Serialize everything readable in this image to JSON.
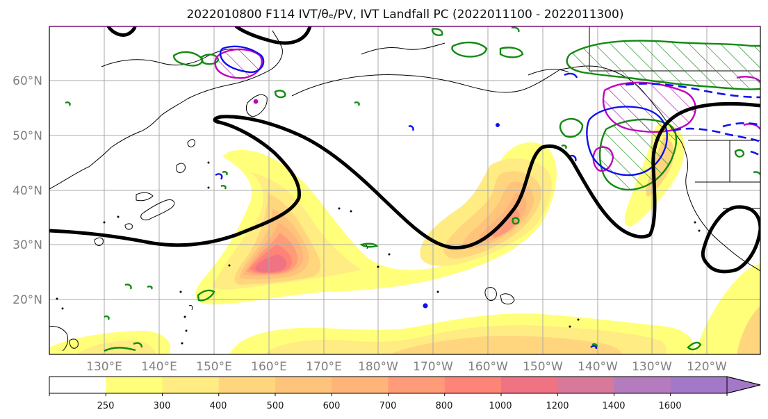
{
  "title": "2022010800 F114 IVT/θₑ/PV, IVT Landfall PC (2022011100 - 2022011300)",
  "map": {
    "lat_labels": [
      "60°N",
      "50°N",
      "40°N",
      "30°N",
      "20°N"
    ],
    "lon_labels": [
      "130°E",
      "140°E",
      "150°E",
      "160°E",
      "170°E",
      "180°W",
      "170°W",
      "160°W",
      "150°W",
      "140°W",
      "130°W",
      "120°W"
    ]
  },
  "colorbar": {
    "ticks": [
      "250",
      "300",
      "400",
      "500",
      "600",
      "700",
      "800",
      "1000",
      "1200",
      "1400",
      "1600"
    ],
    "colors": [
      "#ffffff",
      "#ffff7a",
      "#ffec82",
      "#ffd67e",
      "#ffc47c",
      "#ffb47a",
      "#ff9b78",
      "#ff8478",
      "#f07384",
      "#d8789a",
      "#b47cbe",
      "#a478c8"
    ]
  },
  "colors": {
    "geopotential_contour": "#000000",
    "pv_contour": "#c000c0",
    "theta_e_contour": "#0000ee",
    "landfall_contour": "#007f00"
  }
}
